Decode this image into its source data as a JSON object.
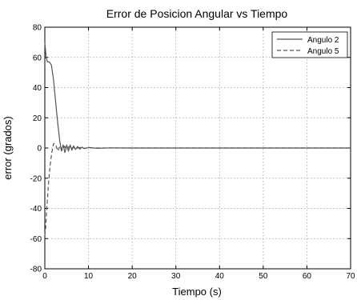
{
  "chart_data": {
    "type": "line",
    "title": "Error de Posicion Angular vs Tiempo",
    "xlabel": "Tiempo (s)",
    "ylabel": "error (grados)",
    "xlim": [
      0,
      70
    ],
    "ylim": [
      -80,
      80
    ],
    "xticks": [
      0,
      10,
      20,
      30,
      40,
      50,
      60,
      70
    ],
    "yticks": [
      -80,
      -60,
      -40,
      -20,
      0,
      20,
      40,
      60,
      80
    ],
    "grid": true,
    "legend_position": "top-right",
    "series": [
      {
        "name": "Angulo 2",
        "line_style": "solid",
        "color": "#555555",
        "x": [
          0,
          0.3,
          0.6,
          1.0,
          1.5,
          2.0,
          2.5,
          3.0,
          3.4,
          3.8,
          4.2,
          4.6,
          5.0,
          5.4,
          5.8,
          6.2,
          6.6,
          7.0,
          7.5,
          8.0,
          8.5,
          9.0,
          10,
          12,
          15,
          20,
          30,
          40,
          50,
          60,
          70
        ],
        "y": [
          70,
          60,
          57,
          57,
          55,
          45,
          30,
          15,
          5,
          -2,
          2,
          -3,
          2,
          -2,
          2,
          -1.5,
          1.5,
          -1,
          1,
          -0.8,
          0.6,
          -0.4,
          0.3,
          -0.2,
          0.1,
          0,
          0,
          0,
          0,
          0,
          0
        ]
      },
      {
        "name": "Angulo 5",
        "line_style": "dashed",
        "color": "#555555",
        "x": [
          0,
          0.2,
          0.5,
          0.8,
          1.2,
          1.6,
          2.0,
          2.5,
          3.0,
          3.5,
          4.0,
          4.5,
          5.0,
          5.5,
          6.0,
          6.5,
          7.0,
          8.0,
          9.0,
          10,
          12,
          15,
          20,
          30,
          40,
          50,
          60,
          70
        ],
        "y": [
          -58,
          -52,
          -38,
          -25,
          -12,
          -3,
          3,
          2,
          -2,
          1.5,
          -1.5,
          1.2,
          -1,
          0.8,
          -0.6,
          0.5,
          -0.4,
          0.3,
          -0.2,
          0.1,
          0,
          0,
          0,
          0,
          0,
          0,
          0,
          0
        ]
      }
    ]
  }
}
